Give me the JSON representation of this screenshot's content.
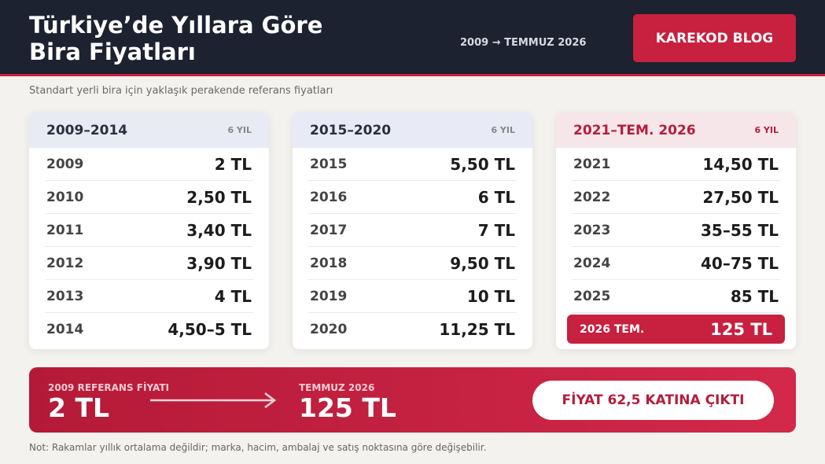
{
  "header": {
    "title_lines": [
      "Türkiye’de Yıllara Göre",
      "Bira Fiyatları"
    ],
    "range": "2009 → TEMMUZ 2026",
    "brand": "KAREKOD BLOG"
  },
  "subtitle": "Standart yerli bira için yaklaşık perakende referans fiyatları",
  "panels": [
    {
      "title": "2009–2014",
      "count": "6 YIL",
      "rows": [
        [
          "2009",
          "2 TL"
        ],
        [
          "2010",
          "2,50 TL"
        ],
        [
          "2011",
          "3,40 TL"
        ],
        [
          "2012",
          "3,90 TL"
        ],
        [
          "2013",
          "4 TL"
        ],
        [
          "2014",
          "4,50–5 TL"
        ]
      ]
    },
    {
      "title": "2015–2020",
      "count": "6 YIL",
      "rows": [
        [
          "2015",
          "5,50 TL"
        ],
        [
          "2016",
          "6 TL"
        ],
        [
          "2017",
          "7 TL"
        ],
        [
          "2018",
          "9,50 TL"
        ],
        [
          "2019",
          "10 TL"
        ],
        [
          "2020",
          "11,25 TL"
        ]
      ]
    },
    {
      "title": "2021–TEM. 2026",
      "count": "6 YIL",
      "rows": [
        [
          "2021",
          "14,50 TL"
        ],
        [
          "2022",
          "27,50 TL"
        ],
        [
          "2023",
          "35–55 TL"
        ],
        [
          "2024",
          "40–75 TL"
        ],
        [
          "2025",
          "85 TL"
        ],
        [
          "2026 TEM.",
          "125 TL"
        ]
      ]
    }
  ],
  "summary": {
    "from_label": "2009 REFERANS FİYATI",
    "from_value": "2 TL",
    "to_label": "TEMMUZ 2026",
    "to_value": "125 TL",
    "badge": "FİYAT 62,5 KATINA ÇIKTI"
  },
  "note": "Not: Rakamlar yıllık ortalama değildir; marka, hacim, ambalaj ve satış noktasına göre değişebilir."
}
